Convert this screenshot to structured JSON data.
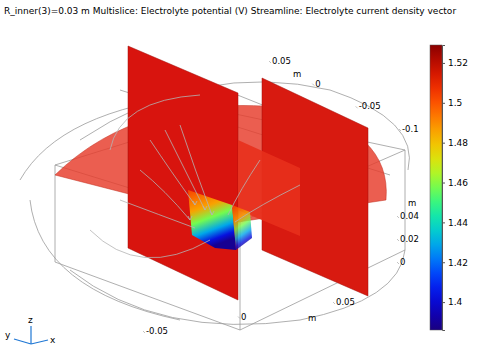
{
  "chart_data": {
    "type": "multislice-3d",
    "title": "R_inner(3)=0.03 m  Multislice: Electrolyte potential (V)  Streamline: Electrolyte current density vector",
    "colorbar": {
      "range": [
        1.386,
        1.529
      ],
      "ticks": [
        1.4,
        1.42,
        1.44,
        1.46,
        1.48,
        1.5,
        1.52
      ]
    },
    "axes": {
      "x": {
        "name": "x",
        "unit": "m",
        "ticks": [
          -0.05,
          0,
          0.05
        ]
      },
      "y": {
        "name": "y",
        "unit": "m",
        "ticks": [
          0.05,
          0,
          -0.05,
          -0.1
        ]
      },
      "z": {
        "name": "z",
        "unit": "m",
        "ticks": [
          0,
          0.02,
          0.04
        ]
      }
    }
  }
}
